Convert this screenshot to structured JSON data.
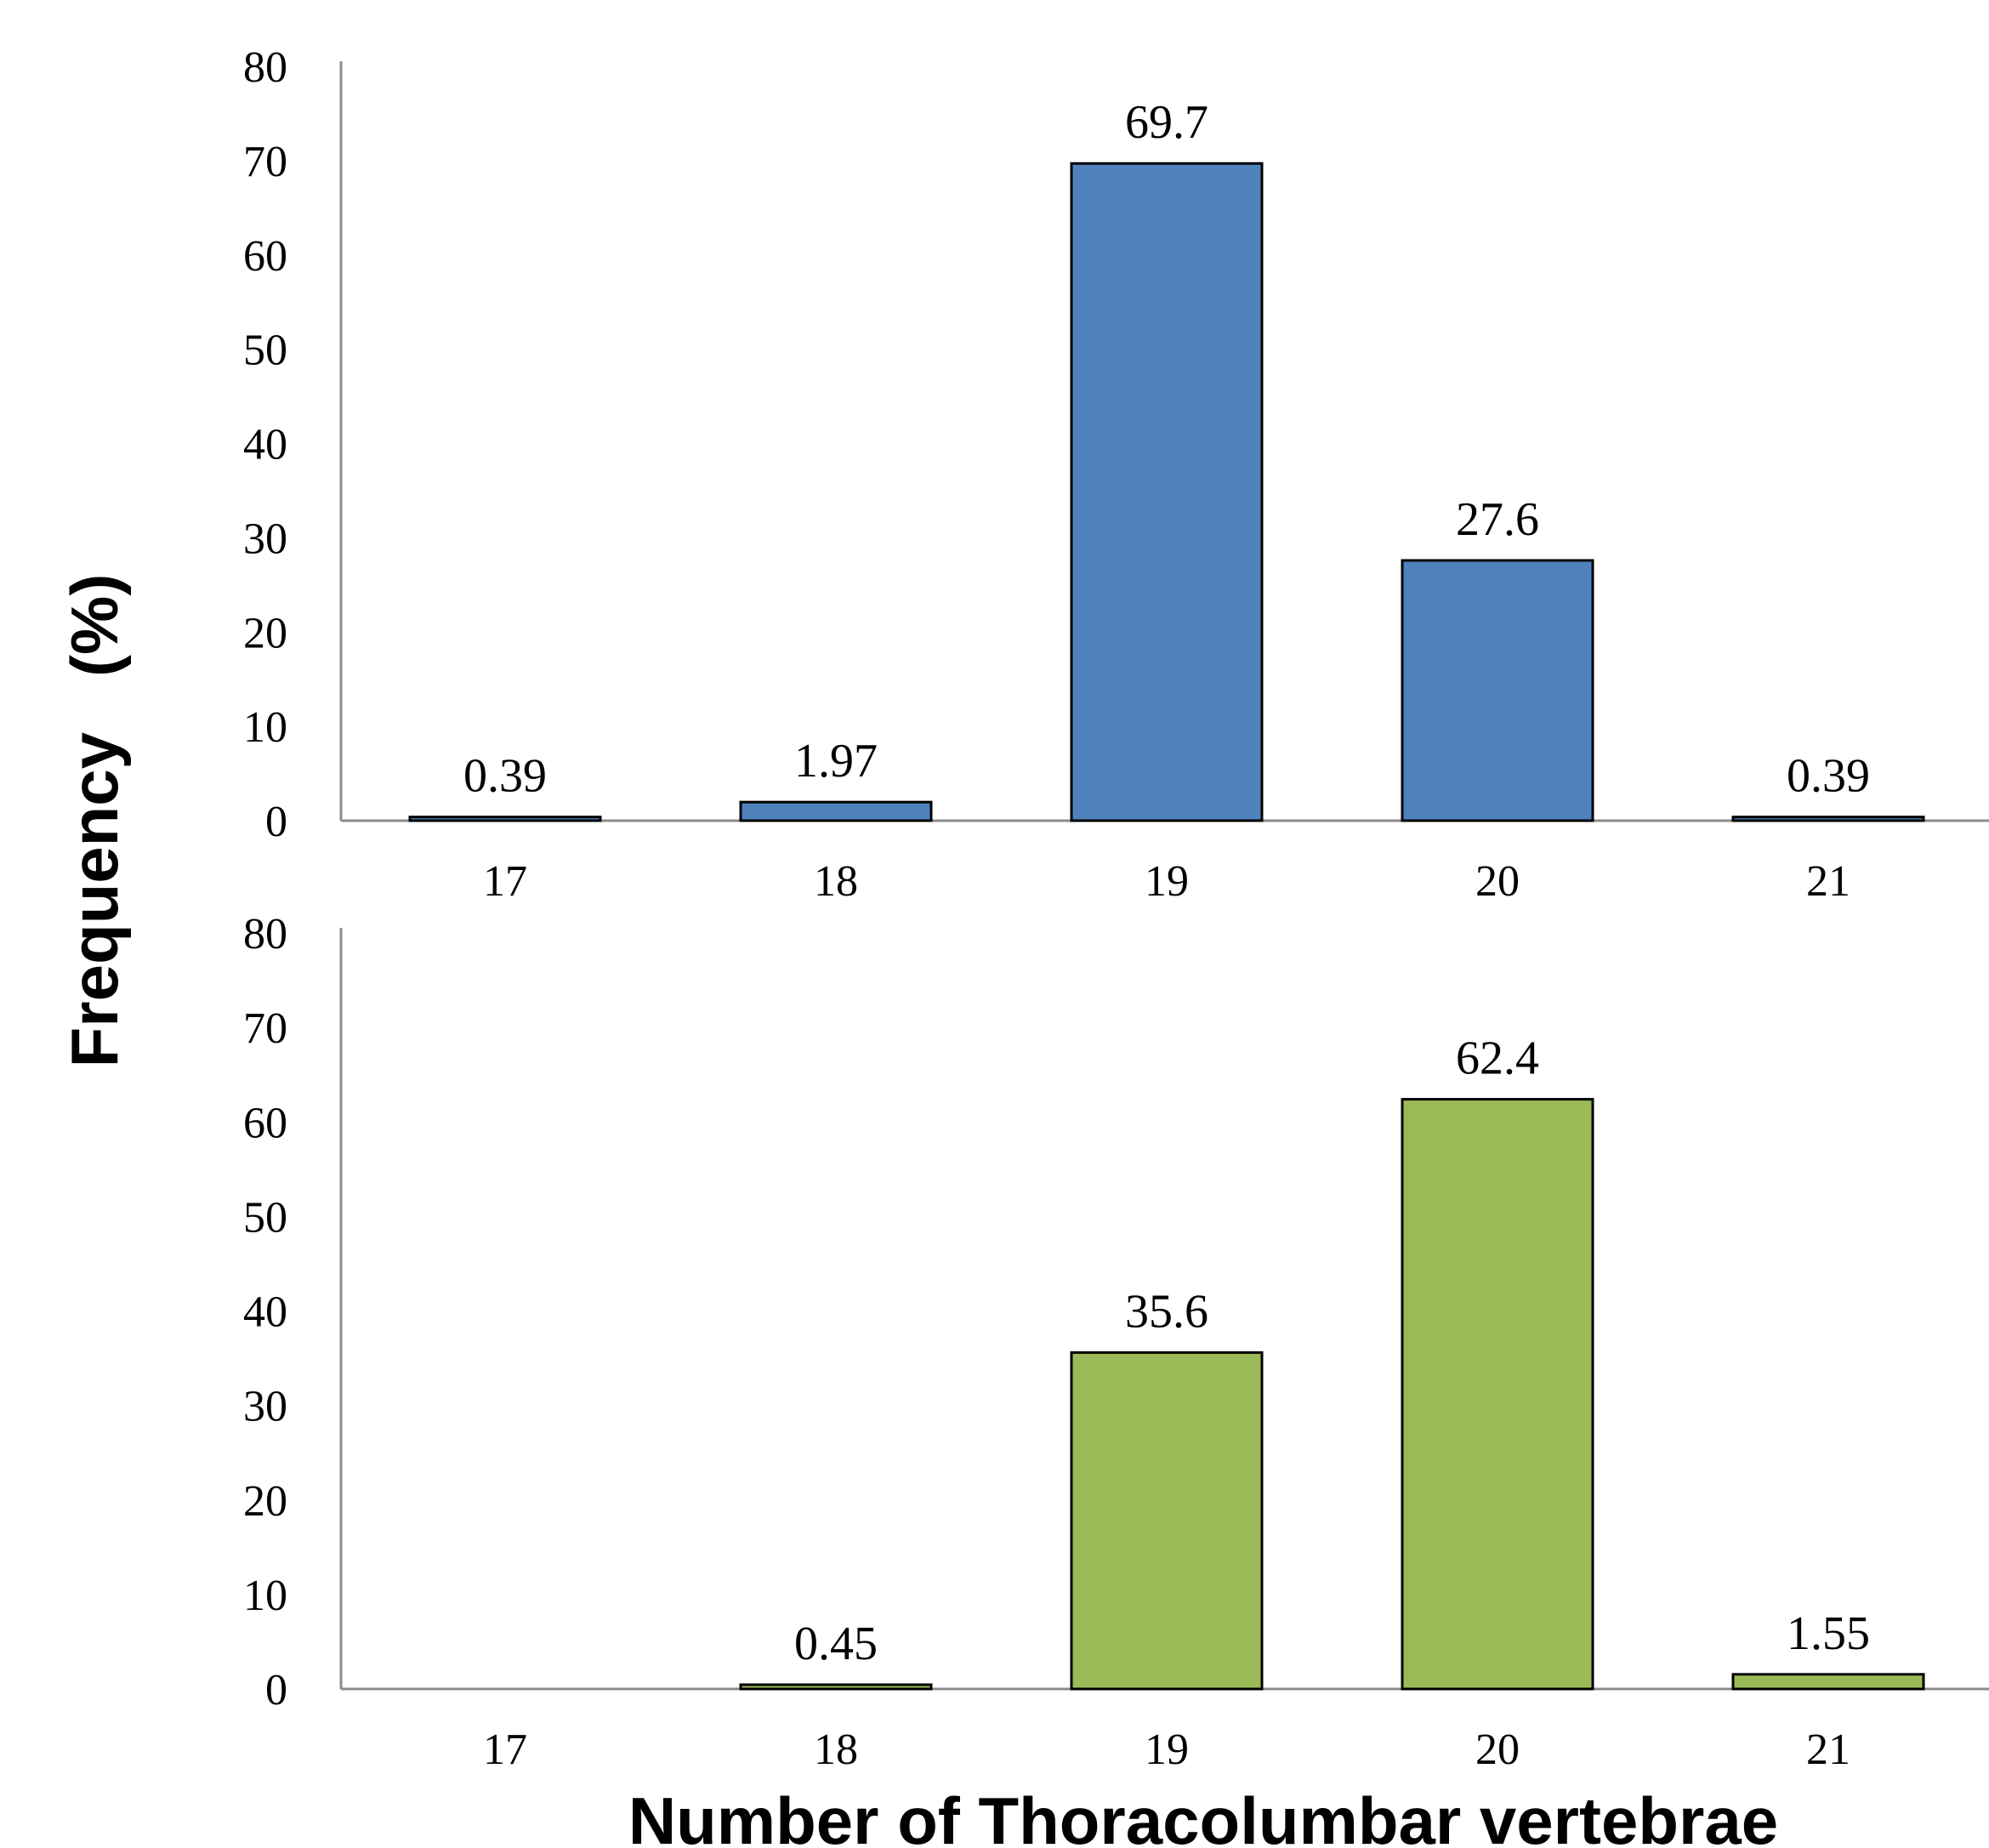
{
  "y_axis_title": "Frequency   (%)",
  "x_axis_title": "Number of Thoracolumbar vertebrae",
  "chart_data": [
    {
      "type": "bar",
      "categories": [
        "17",
        "18",
        "19",
        "20",
        "21"
      ],
      "values": [
        0.39,
        1.97,
        69.7,
        27.6,
        0.39
      ],
      "data_labels": [
        "0.39",
        "1.97",
        "69.7",
        "27.6",
        "0.39"
      ],
      "ylim": [
        0,
        80
      ],
      "yticks": [
        "0",
        "10",
        "20",
        "30",
        "40",
        "50",
        "60",
        "70",
        "80"
      ],
      "color": "#4F81BD",
      "grid": false
    },
    {
      "type": "bar",
      "categories": [
        "17",
        "18",
        "19",
        "20",
        "21"
      ],
      "values": [
        0,
        0.45,
        35.6,
        62.4,
        1.55
      ],
      "data_labels": [
        "",
        "0.45",
        "35.6",
        "62.4",
        "1.55"
      ],
      "ylim": [
        0,
        80
      ],
      "yticks": [
        "0",
        "10",
        "20",
        "30",
        "40",
        "50",
        "60",
        "70",
        "80"
      ],
      "color": "#9BBB59",
      "grid": false
    }
  ]
}
